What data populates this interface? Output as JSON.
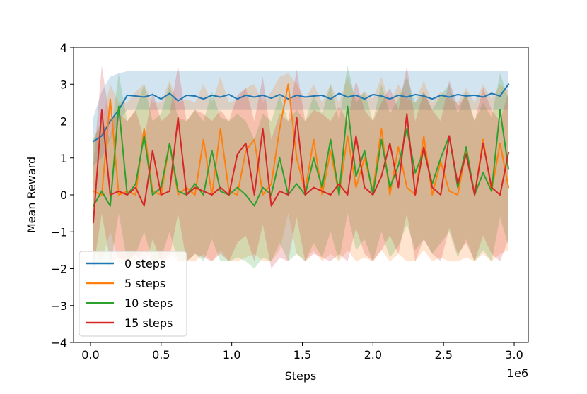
{
  "chart_data": {
    "type": "line",
    "xlabel": "Steps",
    "ylabel": "Mean Reward",
    "x_offset_text": "1e6",
    "xlim": [
      -0.12,
      3.1
    ],
    "ylim": [
      -4,
      4
    ],
    "x_ticks": [
      0.0,
      0.5,
      1.0,
      1.5,
      2.0,
      2.5,
      3.0
    ],
    "x_tick_labels": [
      "0.0",
      "0.5",
      "1.0",
      "1.5",
      "2.0",
      "2.5",
      "3.0"
    ],
    "y_ticks": [
      -4,
      -3,
      -2,
      -1,
      0,
      1,
      2,
      3,
      4
    ],
    "y_tick_labels": [
      "−4",
      "−3",
      "−2",
      "−1",
      "0",
      "1",
      "2",
      "3",
      "4"
    ],
    "grid": false,
    "legend_position": "lower-left",
    "x": [
      0.02,
      0.08,
      0.14,
      0.2,
      0.26,
      0.32,
      0.38,
      0.44,
      0.5,
      0.56,
      0.62,
      0.68,
      0.74,
      0.8,
      0.86,
      0.92,
      0.98,
      1.04,
      1.1,
      1.16,
      1.22,
      1.28,
      1.34,
      1.4,
      1.46,
      1.52,
      1.58,
      1.64,
      1.7,
      1.76,
      1.82,
      1.88,
      1.94,
      2.0,
      2.06,
      2.12,
      2.18,
      2.24,
      2.3,
      2.36,
      2.42,
      2.48,
      2.54,
      2.6,
      2.66,
      2.72,
      2.78,
      2.84,
      2.9,
      2.96
    ],
    "series": [
      {
        "name": "0 steps",
        "color": "#1f77b4",
        "values": [
          1.45,
          1.6,
          2.0,
          2.3,
          2.7,
          2.68,
          2.65,
          2.72,
          2.6,
          2.75,
          2.55,
          2.7,
          2.68,
          2.6,
          2.7,
          2.65,
          2.72,
          2.6,
          2.7,
          2.65,
          2.7,
          2.62,
          2.72,
          2.6,
          2.7,
          2.65,
          2.68,
          2.7,
          2.6,
          2.75,
          2.65,
          2.7,
          2.6,
          2.72,
          2.68,
          2.6,
          2.7,
          2.65,
          2.72,
          2.68,
          2.6,
          2.7,
          2.65,
          2.72,
          2.68,
          2.7,
          2.65,
          2.75,
          2.68,
          3.0
        ],
        "band": [
          [
            0.8,
            2.1
          ],
          [
            1.0,
            2.8
          ],
          [
            1.5,
            3.2
          ],
          [
            2.0,
            3.3
          ],
          [
            2.3,
            3.35
          ],
          [
            2.3,
            3.35
          ],
          [
            2.3,
            3.35
          ],
          [
            2.3,
            3.35
          ],
          [
            2.3,
            3.35
          ],
          [
            2.3,
            3.35
          ],
          [
            2.3,
            3.35
          ],
          [
            2.3,
            3.35
          ],
          [
            2.3,
            3.35
          ],
          [
            2.3,
            3.35
          ],
          [
            2.3,
            3.35
          ],
          [
            2.3,
            3.35
          ],
          [
            2.3,
            3.35
          ],
          [
            2.3,
            3.35
          ],
          [
            2.3,
            3.35
          ],
          [
            2.3,
            3.35
          ],
          [
            2.3,
            3.35
          ],
          [
            2.3,
            3.35
          ],
          [
            2.3,
            3.35
          ],
          [
            2.3,
            3.35
          ],
          [
            2.3,
            3.35
          ],
          [
            2.3,
            3.35
          ],
          [
            2.3,
            3.35
          ],
          [
            2.3,
            3.35
          ],
          [
            2.3,
            3.35
          ],
          [
            2.3,
            3.35
          ],
          [
            2.3,
            3.35
          ],
          [
            2.3,
            3.35
          ],
          [
            2.3,
            3.35
          ],
          [
            2.3,
            3.35
          ],
          [
            2.3,
            3.35
          ],
          [
            2.3,
            3.35
          ],
          [
            2.3,
            3.35
          ],
          [
            2.3,
            3.35
          ],
          [
            2.3,
            3.35
          ],
          [
            2.3,
            3.35
          ],
          [
            2.3,
            3.35
          ],
          [
            2.3,
            3.35
          ],
          [
            2.3,
            3.35
          ],
          [
            2.3,
            3.35
          ],
          [
            2.3,
            3.35
          ],
          [
            2.3,
            3.35
          ],
          [
            2.3,
            3.35
          ],
          [
            2.3,
            3.35
          ],
          [
            2.3,
            3.35
          ],
          [
            2.3,
            3.35
          ]
        ]
      },
      {
        "name": "5 steps",
        "color": "#ff7f0e",
        "values": [
          0.1,
          0.0,
          2.6,
          0.0,
          0.1,
          0.0,
          1.8,
          0.1,
          0.0,
          1.4,
          0.0,
          0.2,
          0.0,
          1.5,
          0.0,
          1.8,
          0.1,
          0.0,
          1.2,
          1.5,
          0.0,
          0.3,
          1.8,
          3.0,
          1.0,
          0.1,
          1.5,
          0.0,
          1.2,
          0.0,
          1.6,
          0.2,
          1.0,
          0.1,
          1.8,
          0.0,
          1.3,
          0.2,
          0.0,
          1.6,
          0.0,
          0.9,
          0.1,
          0.0,
          1.2,
          0.0,
          1.5,
          0.1,
          1.4,
          0.2
        ],
        "band": [
          [
            -1.5,
            1.5
          ],
          [
            -1.8,
            2.0
          ],
          [
            -1.0,
            3.0
          ],
          [
            -1.8,
            2.5
          ],
          [
            -1.8,
            2.5
          ],
          [
            -1.8,
            2.8
          ],
          [
            -1.5,
            3.0
          ],
          [
            -1.8,
            2.5
          ],
          [
            -1.8,
            2.5
          ],
          [
            -1.6,
            3.1
          ],
          [
            -1.8,
            2.5
          ],
          [
            -1.8,
            2.6
          ],
          [
            -1.8,
            2.5
          ],
          [
            -1.6,
            3.0
          ],
          [
            -1.8,
            2.5
          ],
          [
            -1.5,
            3.2
          ],
          [
            -1.8,
            2.5
          ],
          [
            -1.8,
            2.6
          ],
          [
            -1.7,
            2.9
          ],
          [
            -1.6,
            3.0
          ],
          [
            -1.8,
            2.5
          ],
          [
            -1.8,
            2.8
          ],
          [
            -1.5,
            3.2
          ],
          [
            -0.5,
            3.3
          ],
          [
            -1.6,
            3.0
          ],
          [
            -1.8,
            2.6
          ],
          [
            -1.5,
            3.0
          ],
          [
            -1.8,
            2.5
          ],
          [
            -1.6,
            3.0
          ],
          [
            -1.8,
            2.5
          ],
          [
            -1.5,
            3.2
          ],
          [
            -1.8,
            2.6
          ],
          [
            -1.7,
            2.8
          ],
          [
            -1.8,
            2.6
          ],
          [
            -1.5,
            3.2
          ],
          [
            -1.8,
            2.5
          ],
          [
            -1.6,
            3.0
          ],
          [
            -1.8,
            2.6
          ],
          [
            -1.8,
            2.5
          ],
          [
            -1.5,
            3.1
          ],
          [
            -1.8,
            2.5
          ],
          [
            -1.7,
            2.8
          ],
          [
            -1.8,
            2.6
          ],
          [
            -1.8,
            2.5
          ],
          [
            -1.7,
            2.9
          ],
          [
            -1.8,
            2.5
          ],
          [
            -1.6,
            3.0
          ],
          [
            -1.8,
            2.6
          ],
          [
            -1.6,
            3.0
          ],
          [
            -1.5,
            2.8
          ]
        ]
      },
      {
        "name": "10 steps",
        "color": "#2ca02c",
        "values": [
          -0.3,
          0.1,
          -0.3,
          2.4,
          0.0,
          0.3,
          1.6,
          0.0,
          0.2,
          1.4,
          0.1,
          0.0,
          0.3,
          0.0,
          1.2,
          0.1,
          0.0,
          0.2,
          0.0,
          -0.3,
          0.2,
          0.0,
          1.0,
          0.0,
          0.3,
          0.0,
          1.0,
          0.2,
          1.5,
          0.0,
          2.4,
          0.5,
          1.2,
          0.0,
          1.5,
          0.2,
          0.8,
          1.8,
          0.6,
          1.2,
          0.3,
          1.0,
          1.6,
          0.2,
          1.3,
          0.0,
          0.6,
          0.1,
          2.3,
          0.7
        ],
        "band": [
          [
            -2.0,
            1.5
          ],
          [
            -1.8,
            2.0
          ],
          [
            -2.0,
            1.5
          ],
          [
            -0.5,
            3.3
          ],
          [
            -1.8,
            2.0
          ],
          [
            -1.6,
            2.3
          ],
          [
            -1.0,
            3.0
          ],
          [
            -1.8,
            2.0
          ],
          [
            -1.7,
            2.2
          ],
          [
            -1.0,
            3.0
          ],
          [
            -1.8,
            2.1
          ],
          [
            -1.8,
            2.0
          ],
          [
            -1.6,
            2.3
          ],
          [
            -1.8,
            2.0
          ],
          [
            -1.2,
            2.8
          ],
          [
            -1.8,
            2.1
          ],
          [
            -1.8,
            2.0
          ],
          [
            -1.7,
            2.2
          ],
          [
            -1.8,
            2.0
          ],
          [
            -2.0,
            1.5
          ],
          [
            -1.7,
            2.2
          ],
          [
            -1.8,
            2.0
          ],
          [
            -1.3,
            2.7
          ],
          [
            -1.8,
            2.0
          ],
          [
            -1.6,
            2.3
          ],
          [
            -1.8,
            2.0
          ],
          [
            -1.3,
            2.7
          ],
          [
            -1.7,
            2.2
          ],
          [
            -1.0,
            3.0
          ],
          [
            -1.8,
            2.0
          ],
          [
            -0.5,
            3.5
          ],
          [
            -1.5,
            2.5
          ],
          [
            -1.2,
            2.8
          ],
          [
            -1.8,
            2.0
          ],
          [
            -1.0,
            3.0
          ],
          [
            -1.7,
            2.2
          ],
          [
            -1.4,
            2.6
          ],
          [
            -0.8,
            3.2
          ],
          [
            -1.5,
            2.5
          ],
          [
            -1.2,
            2.8
          ],
          [
            -1.6,
            2.3
          ],
          [
            -1.3,
            2.7
          ],
          [
            -1.0,
            3.0
          ],
          [
            -1.7,
            2.2
          ],
          [
            -1.2,
            2.8
          ],
          [
            -1.8,
            2.0
          ],
          [
            -1.5,
            2.5
          ],
          [
            -1.8,
            2.1
          ],
          [
            -0.6,
            3.3
          ],
          [
            -1.4,
            2.6
          ]
        ]
      },
      {
        "name": "15 steps",
        "color": "#d62728",
        "values": [
          -0.75,
          2.3,
          0.0,
          0.1,
          0.0,
          0.2,
          -0.3,
          1.2,
          0.0,
          0.1,
          2.1,
          0.0,
          0.2,
          0.1,
          0.0,
          0.2,
          0.0,
          1.1,
          1.4,
          0.0,
          1.8,
          -0.3,
          0.1,
          0.0,
          2.1,
          0.0,
          0.2,
          0.1,
          0.0,
          0.3,
          0.0,
          1.6,
          0.2,
          0.0,
          0.5,
          1.4,
          0.2,
          2.2,
          0.0,
          1.3,
          0.2,
          0.0,
          1.6,
          0.3,
          1.1,
          0.0,
          1.4,
          0.2,
          0.0,
          1.15
        ],
        "band": [
          [
            -2.0,
            0.8
          ],
          [
            -0.5,
            3.5
          ],
          [
            -1.8,
            2.0
          ],
          [
            -1.7,
            2.2
          ],
          [
            -1.8,
            2.0
          ],
          [
            -1.6,
            2.3
          ],
          [
            -2.0,
            1.5
          ],
          [
            -1.2,
            2.8
          ],
          [
            -1.8,
            2.0
          ],
          [
            -1.7,
            2.2
          ],
          [
            -0.5,
            3.5
          ],
          [
            -1.8,
            2.0
          ],
          [
            -1.6,
            2.3
          ],
          [
            -1.7,
            2.2
          ],
          [
            -1.8,
            2.0
          ],
          [
            -1.6,
            2.3
          ],
          [
            -1.8,
            2.0
          ],
          [
            -1.3,
            2.7
          ],
          [
            -1.1,
            2.9
          ],
          [
            -1.8,
            2.0
          ],
          [
            -0.8,
            3.2
          ],
          [
            -2.0,
            1.5
          ],
          [
            -1.7,
            2.2
          ],
          [
            -1.8,
            2.0
          ],
          [
            -0.6,
            3.4
          ],
          [
            -1.8,
            2.0
          ],
          [
            -1.6,
            2.3
          ],
          [
            -1.7,
            2.2
          ],
          [
            -1.8,
            2.0
          ],
          [
            -1.6,
            2.4
          ],
          [
            -1.8,
            2.0
          ],
          [
            -0.9,
            3.1
          ],
          [
            -1.6,
            2.3
          ],
          [
            -1.8,
            2.0
          ],
          [
            -1.5,
            2.5
          ],
          [
            -1.1,
            2.9
          ],
          [
            -1.6,
            2.3
          ],
          [
            -0.5,
            3.5
          ],
          [
            -1.8,
            2.0
          ],
          [
            -1.2,
            2.8
          ],
          [
            -1.6,
            2.3
          ],
          [
            -1.8,
            2.0
          ],
          [
            -0.9,
            3.1
          ],
          [
            -1.6,
            2.4
          ],
          [
            -1.3,
            2.7
          ],
          [
            -1.8,
            2.0
          ],
          [
            -1.1,
            2.9
          ],
          [
            -1.6,
            2.3
          ],
          [
            -1.8,
            2.0
          ],
          [
            -1.2,
            2.8
          ]
        ]
      }
    ]
  }
}
